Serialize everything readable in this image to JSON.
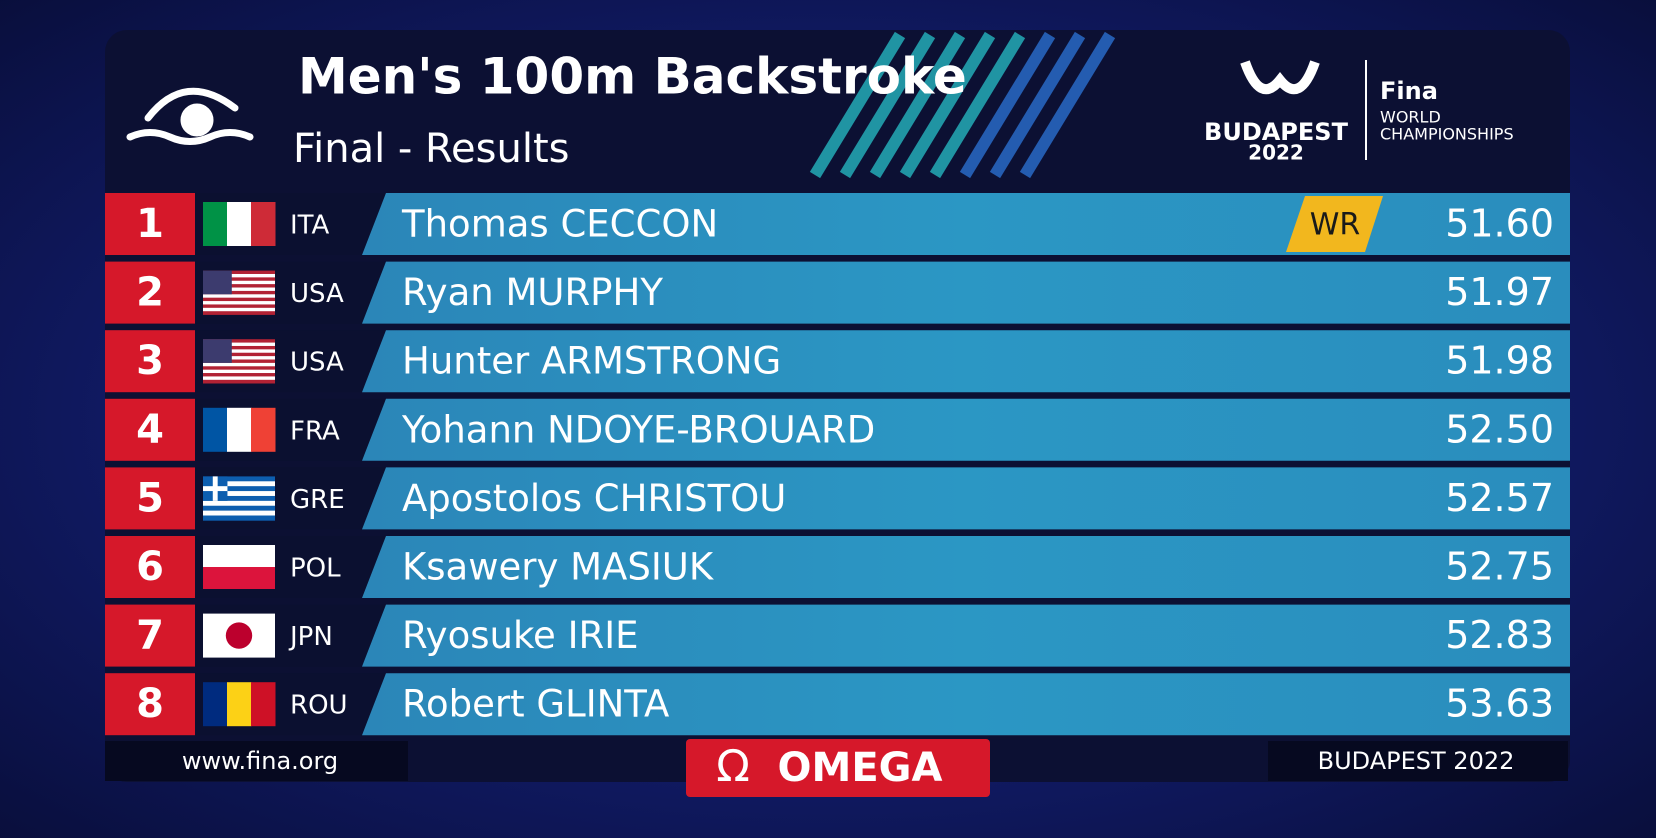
{
  "header": {
    "title": "Men's 100m Backstroke",
    "subtitle": "Final - Results",
    "logo": {
      "city": "BUDAPEST",
      "year": "2022",
      "brand": "Fina",
      "line1": "WORLD",
      "line2": "CHAMPIONSHIPS"
    }
  },
  "table": {
    "rows": [
      {
        "rank": "1",
        "country": "ITA",
        "name": "Thomas CECCON",
        "time": "51.60",
        "record": "WR",
        "flag": {
          "style": "tricolor-v",
          "colors": [
            "#009246",
            "#ffffff",
            "#ce2b37"
          ]
        }
      },
      {
        "rank": "2",
        "country": "USA",
        "name": "Ryan MURPHY",
        "time": "51.97",
        "flag": {
          "style": "stars-stripes",
          "colors": [
            "#b22234",
            "#ffffff",
            "#3c3b6e"
          ]
        }
      },
      {
        "rank": "3",
        "country": "USA",
        "name": "Hunter ARMSTRONG",
        "time": "51.98",
        "flag": {
          "style": "stars-stripes",
          "colors": [
            "#b22234",
            "#ffffff",
            "#3c3b6e"
          ]
        }
      },
      {
        "rank": "4",
        "country": "FRA",
        "name": "Yohann NDOYE-BROUARD",
        "time": "52.50",
        "flag": {
          "style": "tricolor-v",
          "colors": [
            "#0055a4",
            "#ffffff",
            "#ef4135"
          ]
        }
      },
      {
        "rank": "5",
        "country": "GRE",
        "name": "Apostolos CHRISTOU",
        "time": "52.57",
        "flag": {
          "style": "greece",
          "colors": [
            "#0d5eaf",
            "#ffffff"
          ]
        }
      },
      {
        "rank": "6",
        "country": "POL",
        "name": "Ksawery MASIUK",
        "time": "52.75",
        "flag": {
          "style": "bicolor-h",
          "colors": [
            "#ffffff",
            "#dc143c"
          ]
        }
      },
      {
        "rank": "7",
        "country": "JPN",
        "name": "Ryosuke IRIE",
        "time": "52.83",
        "flag": {
          "style": "disc",
          "colors": [
            "#ffffff",
            "#bc002d"
          ]
        }
      },
      {
        "rank": "8",
        "country": "ROU",
        "name": "Robert GLINTA",
        "time": "53.63",
        "flag": {
          "style": "tricolor-v",
          "colors": [
            "#002b7f",
            "#fcd116",
            "#ce1126"
          ]
        }
      }
    ]
  },
  "footer": {
    "website": "www.fina.org",
    "sponsor_symbol": "Ω",
    "sponsor": "OMEGA",
    "event": "BUDAPEST 2022"
  }
}
